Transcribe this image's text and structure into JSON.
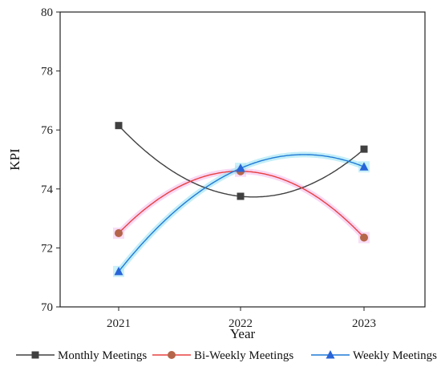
{
  "chart_data": {
    "type": "line",
    "title": "",
    "xlabel": "Year",
    "ylabel": "KPI",
    "categories": [
      "2021",
      "2022",
      "2023"
    ],
    "ylim": [
      70,
      80
    ],
    "yticks": [
      70,
      72,
      74,
      76,
      78,
      80
    ],
    "grid": false,
    "legend_position": "bottom",
    "smooth": true,
    "series": [
      {
        "name": "Monthly Meetings",
        "values": [
          76.15,
          73.75,
          75.35
        ],
        "color": "#404040",
        "marker": "square"
      },
      {
        "name": "Bi-Weekly Meetings",
        "values": [
          72.5,
          74.6,
          72.35
        ],
        "color": "#e84040",
        "marker_color": "#b5654a",
        "marker": "circle",
        "glow": "#f5c6f0"
      },
      {
        "name": "Weekly Meetings",
        "values": [
          71.2,
          74.7,
          74.75
        ],
        "color": "#1f7ad6",
        "marker_color": "#2864d8",
        "marker": "triangle",
        "glow": "#a9e7f5"
      }
    ]
  }
}
